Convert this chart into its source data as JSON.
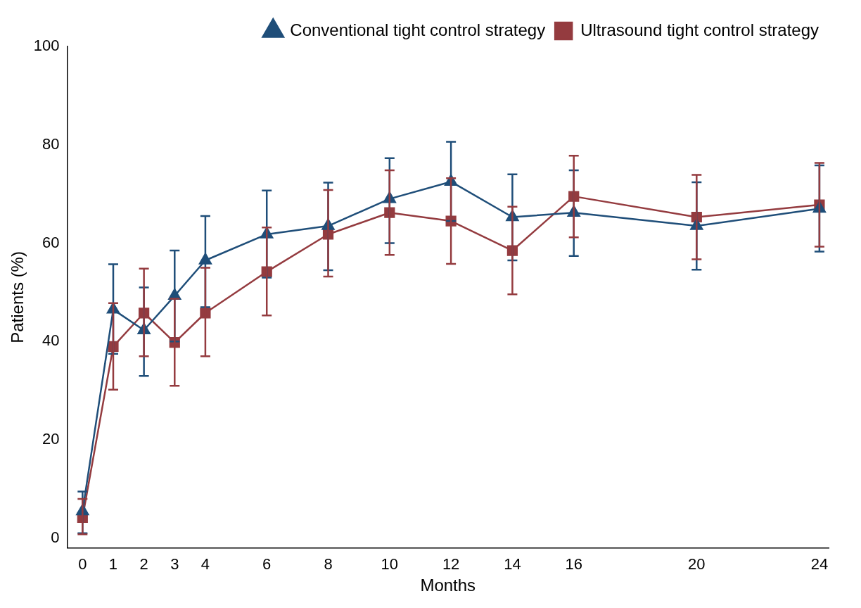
{
  "chart_data": {
    "type": "line",
    "xlabel": "Months",
    "ylabel": "Patients (%)",
    "x": [
      0,
      1,
      2,
      3,
      4,
      6,
      8,
      10,
      12,
      14,
      16,
      20,
      24
    ],
    "xlim": [
      -0.5,
      24.3
    ],
    "xticks": [
      0,
      1,
      2,
      3,
      4,
      6,
      8,
      10,
      12,
      14,
      16,
      20,
      24
    ],
    "ylim": [
      -2,
      100
    ],
    "yticks": [
      0,
      20,
      40,
      60,
      80,
      100
    ],
    "grid": false,
    "legend": "top right",
    "line_style": "solid",
    "series": [
      {
        "name": "Conventional tight control strategy",
        "color": "#1f4e79",
        "marker": "triangle",
        "values": [
          5.5,
          46.5,
          42.3,
          49.3,
          56.5,
          61.8,
          63.5,
          69,
          72.5,
          65.3,
          66.2,
          63.5,
          67
        ],
        "errors": [
          [
            1,
            9.5
          ],
          [
            37.5,
            55.7
          ],
          [
            33,
            51
          ],
          [
            40,
            58.5
          ],
          [
            47,
            65.5
          ],
          [
            53,
            70.7
          ],
          [
            54.5,
            72.3
          ],
          [
            60,
            77.3
          ],
          [
            64.5,
            80.6
          ],
          [
            56.5,
            74
          ],
          [
            57.4,
            74.8
          ],
          [
            54.6,
            72.4
          ],
          [
            58.3,
            75.8
          ]
        ]
      },
      {
        "name": "Ultrasound tight control strategy",
        "color": "#943b3f",
        "marker": "square",
        "values": [
          4.2,
          39,
          45.8,
          39.8,
          45.8,
          54.2,
          61.8,
          66.2,
          64.5,
          58.5,
          69.5,
          65.3,
          67.8
        ],
        "errors": [
          [
            0.8,
            8
          ],
          [
            30.2,
            47.8
          ],
          [
            37,
            54.8
          ],
          [
            31,
            48.7
          ],
          [
            37,
            55
          ],
          [
            45.3,
            63.2
          ],
          [
            53.2,
            70.8
          ],
          [
            57.6,
            74.8
          ],
          [
            55.8,
            73.2
          ],
          [
            49.6,
            67.4
          ],
          [
            61.2,
            77.8
          ],
          [
            56.7,
            73.9
          ],
          [
            59.3,
            76.3
          ]
        ]
      }
    ]
  }
}
